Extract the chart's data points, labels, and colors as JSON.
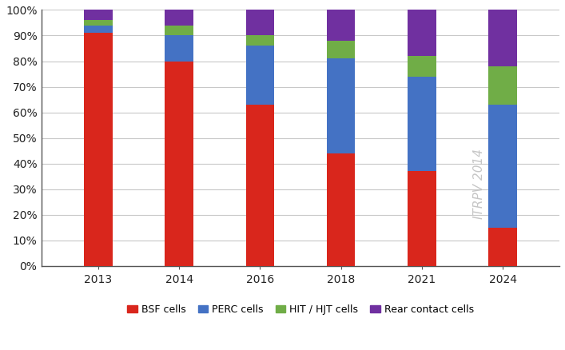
{
  "years": [
    "2013",
    "2014",
    "2016",
    "2018",
    "2021",
    "2024"
  ],
  "series": {
    "BSF cells": [
      91,
      80,
      63,
      44,
      37,
      15
    ],
    "PERC cells": [
      3,
      10,
      23,
      37,
      37,
      48
    ],
    "HIT / HJT cells": [
      2,
      4,
      4,
      7,
      8,
      15
    ],
    "Rear contact cells": [
      4,
      6,
      10,
      12,
      18,
      22
    ]
  },
  "colors": {
    "BSF cells": "#d9261c",
    "PERC cells": "#4472c4",
    "HIT / HJT cells": "#70ad47",
    "Rear contact cells": "#7030a0"
  },
  "ylim": [
    0,
    100
  ],
  "ytick_labels": [
    "0%",
    "10%",
    "20%",
    "30%",
    "40%",
    "50%",
    "60%",
    "70%",
    "80%",
    "90%",
    "100%"
  ],
  "legend_order": [
    "BSF cells",
    "PERC cells",
    "HIT / HJT cells",
    "Rear contact cells"
  ],
  "watermark": "ITRPV 2014",
  "bar_width": 0.35,
  "background_color": "#ffffff",
  "grid_color": "#c8c8c8",
  "spine_color": "#555555",
  "tick_fontsize": 10,
  "legend_fontsize": 9
}
